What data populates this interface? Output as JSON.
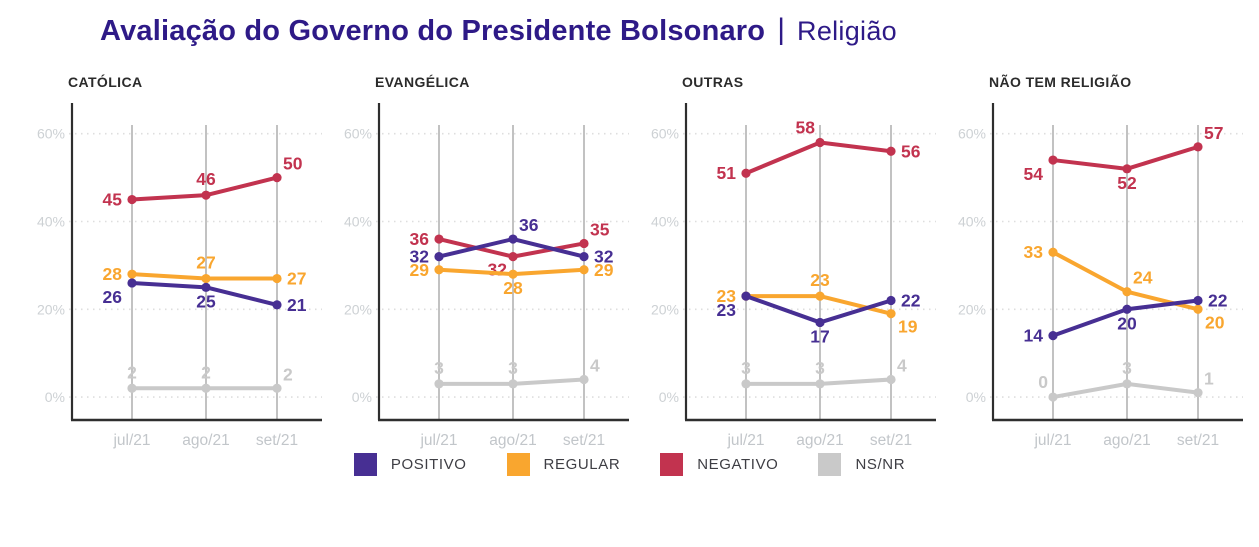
{
  "title": {
    "main": "Avaliação do Governo do Presidente Bolsonaro",
    "separator": "|",
    "highlight": "Religião"
  },
  "colors": {
    "positivo": "#472F93",
    "regular": "#F9A62F",
    "negativo": "#C2334F",
    "nsnr": "#C9C9C9",
    "title": "#2E1A87",
    "axis": "#2E2E2E",
    "vgrid": "#BBBBBB",
    "hgrid": "#DEDEDE",
    "ytick_label": "#CDD1D4",
    "xtick_label": "#C2C6CA",
    "chart_title": "#2B2B2B",
    "legend_label": "#3E3E44"
  },
  "legend": [
    {
      "label": "POSITIVO",
      "color_key": "positivo"
    },
    {
      "label": "REGULAR",
      "color_key": "regular"
    },
    {
      "label": "NEGATIVO",
      "color_key": "negativo"
    },
    {
      "label": "NS/NR",
      "color_key": "nsnr"
    }
  ],
  "chart_data": {
    "type": "line",
    "x": [
      "jul/21",
      "ago/21",
      "set/21"
    ],
    "yticks": [
      0,
      20,
      40,
      60
    ],
    "ytick_suffix": "%",
    "ylim": [
      -5,
      67
    ],
    "grid": {
      "horizontal": "dashed",
      "vertical": "solid"
    },
    "legend_position": "bottom",
    "charts": [
      {
        "title": "CATÓLICA",
        "series": [
          {
            "name": "POSITIVO",
            "key": "positivo",
            "values": [
              26,
              25,
              21
            ],
            "label_pos": [
              "left-below",
              "below",
              "right"
            ]
          },
          {
            "name": "REGULAR",
            "key": "regular",
            "values": [
              28,
              27,
              27
            ],
            "label_pos": [
              "left",
              "above",
              "right"
            ]
          },
          {
            "name": "NEGATIVO",
            "key": "negativo",
            "values": [
              45,
              46,
              50
            ],
            "label_pos": [
              "left",
              "above",
              "above-right"
            ]
          },
          {
            "name": "NS/NR",
            "key": "nsnr",
            "values": [
              2,
              2,
              2
            ],
            "label_pos": [
              "above",
              "above",
              "above-right"
            ]
          }
        ]
      },
      {
        "title": "EVANGÉLICA",
        "series": [
          {
            "name": "POSITIVO",
            "key": "positivo",
            "values": [
              32,
              36,
              32
            ],
            "label_pos": [
              "left",
              "above-right",
              "right"
            ]
          },
          {
            "name": "REGULAR",
            "key": "regular",
            "values": [
              29,
              28,
              29
            ],
            "label_pos": [
              "left",
              "below",
              "right"
            ]
          },
          {
            "name": "NEGATIVO",
            "key": "negativo",
            "values": [
              36,
              32,
              35
            ],
            "label_pos": [
              "left",
              "below-left",
              "above-right"
            ]
          },
          {
            "name": "NS/NR",
            "key": "nsnr",
            "values": [
              3,
              3,
              4
            ],
            "label_pos": [
              "above",
              "above",
              "above-right"
            ]
          }
        ]
      },
      {
        "title": "OUTRAS",
        "series": [
          {
            "name": "POSITIVO",
            "key": "positivo",
            "values": [
              23,
              17,
              22
            ],
            "label_pos": [
              "left-below",
              "below",
              "right"
            ]
          },
          {
            "name": "REGULAR",
            "key": "regular",
            "values": [
              23,
              23,
              19
            ],
            "label_pos": [
              "left",
              "above",
              "below-right"
            ]
          },
          {
            "name": "NEGATIVO",
            "key": "negativo",
            "values": [
              51,
              58,
              56
            ],
            "label_pos": [
              "left",
              "above-left",
              "right"
            ]
          },
          {
            "name": "NS/NR",
            "key": "nsnr",
            "values": [
              3,
              3,
              4
            ],
            "label_pos": [
              "above",
              "above",
              "above-right"
            ]
          }
        ]
      },
      {
        "title": "NÃO TEM RELIGIÃO",
        "series": [
          {
            "name": "POSITIVO",
            "key": "positivo",
            "values": [
              14,
              20,
              22
            ],
            "label_pos": [
              "left",
              "below",
              "right"
            ]
          },
          {
            "name": "REGULAR",
            "key": "regular",
            "values": [
              33,
              24,
              20
            ],
            "label_pos": [
              "left",
              "above-right",
              "below-right"
            ]
          },
          {
            "name": "NEGATIVO",
            "key": "negativo",
            "values": [
              54,
              52,
              57
            ],
            "label_pos": [
              "left-below",
              "below",
              "above-right"
            ]
          },
          {
            "name": "NS/NR",
            "key": "nsnr",
            "values": [
              0,
              3,
              1
            ],
            "label_pos": [
              "above-left",
              "above",
              "above-right"
            ]
          }
        ]
      }
    ]
  }
}
